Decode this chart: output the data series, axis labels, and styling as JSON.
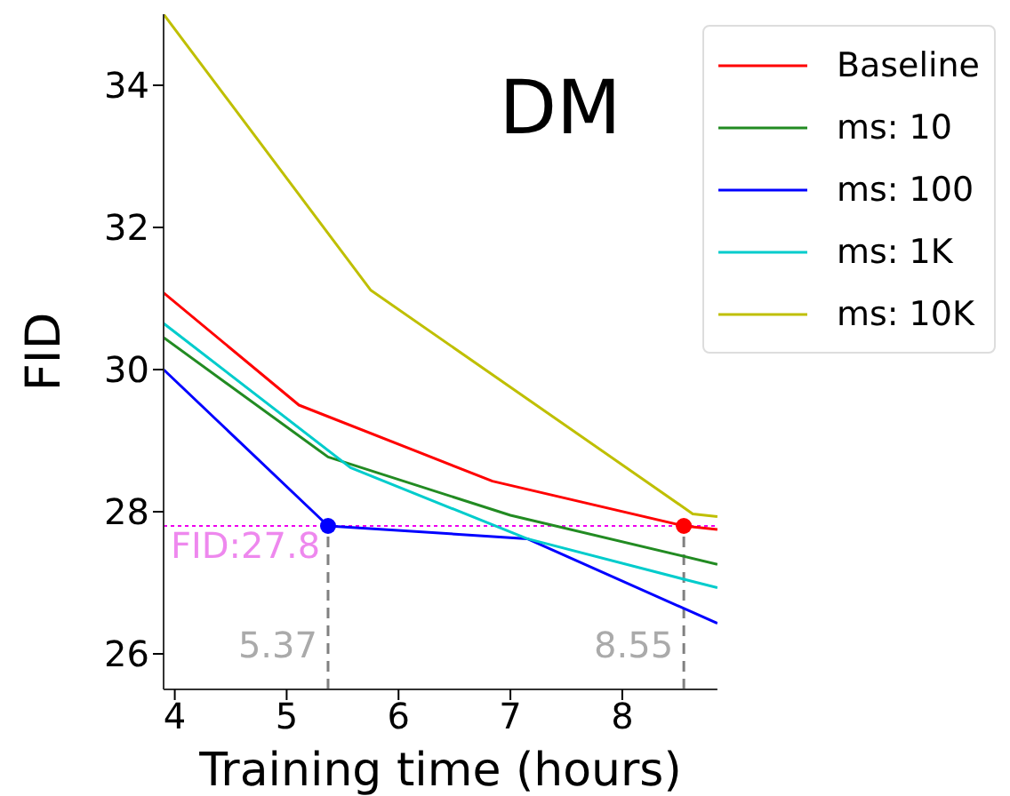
{
  "chart_data": {
    "type": "line",
    "title": "DM",
    "xlabel": "Training time (hours)",
    "ylabel": "FID",
    "xlim": [
      3.9,
      8.85
    ],
    "xticks": [
      4,
      5,
      6,
      7,
      8
    ],
    "ylim": [
      25.5,
      35
    ],
    "yticks": [
      26,
      28,
      30,
      32,
      34
    ],
    "legend": "top right",
    "marker": "none",
    "line_style": "solid",
    "series": [
      {
        "name": "Baseline",
        "color": "#ff0000",
        "x": [
          3.9,
          5.11,
          6.84,
          8.55,
          8.85
        ],
        "values": [
          31.08,
          29.5,
          28.43,
          27.8,
          27.75
        ]
      },
      {
        "name": "ms: 10",
        "color": "#228b22",
        "x": [
          3.9,
          5.37,
          7.0,
          8.85
        ],
        "values": [
          30.45,
          28.77,
          27.95,
          27.26
        ]
      },
      {
        "name": "ms: 100",
        "color": "#0000ff",
        "x": [
          3.9,
          5.37,
          7.15,
          8.85
        ],
        "values": [
          30.0,
          27.8,
          27.62,
          26.43
        ]
      },
      {
        "name": "ms: 1K",
        "color": "#00cccc",
        "x": [
          3.9,
          5.57,
          7.15,
          8.55,
          8.85
        ],
        "values": [
          30.65,
          28.62,
          27.62,
          27.05,
          26.93
        ]
      },
      {
        "name": "ms: 10K",
        "color": "#bfbf00",
        "x": [
          3.9,
          5.75,
          8.63,
          8.85
        ],
        "values": [
          35.0,
          31.12,
          27.97,
          27.93
        ]
      },
      {
        "type": "scatter",
        "marker": "circle",
        "x": [
          5.37,
          8.55
        ],
        "values": [
          27.8,
          27.8
        ],
        "colors": [
          "#0000ff",
          "#ff0000"
        ]
      }
    ],
    "ref_lines": [
      {
        "axis": "y",
        "value": 27.8,
        "label": "FID:27.8",
        "color": "#ee00ee",
        "line_style": "dotted"
      },
      {
        "axis": "x",
        "value": 5.37,
        "label": "5.37",
        "color": "#808080",
        "line_style": "dashed"
      },
      {
        "axis": "x",
        "value": 8.55,
        "label": "8.55",
        "color": "#808080",
        "line_style": "dashed"
      }
    ]
  }
}
